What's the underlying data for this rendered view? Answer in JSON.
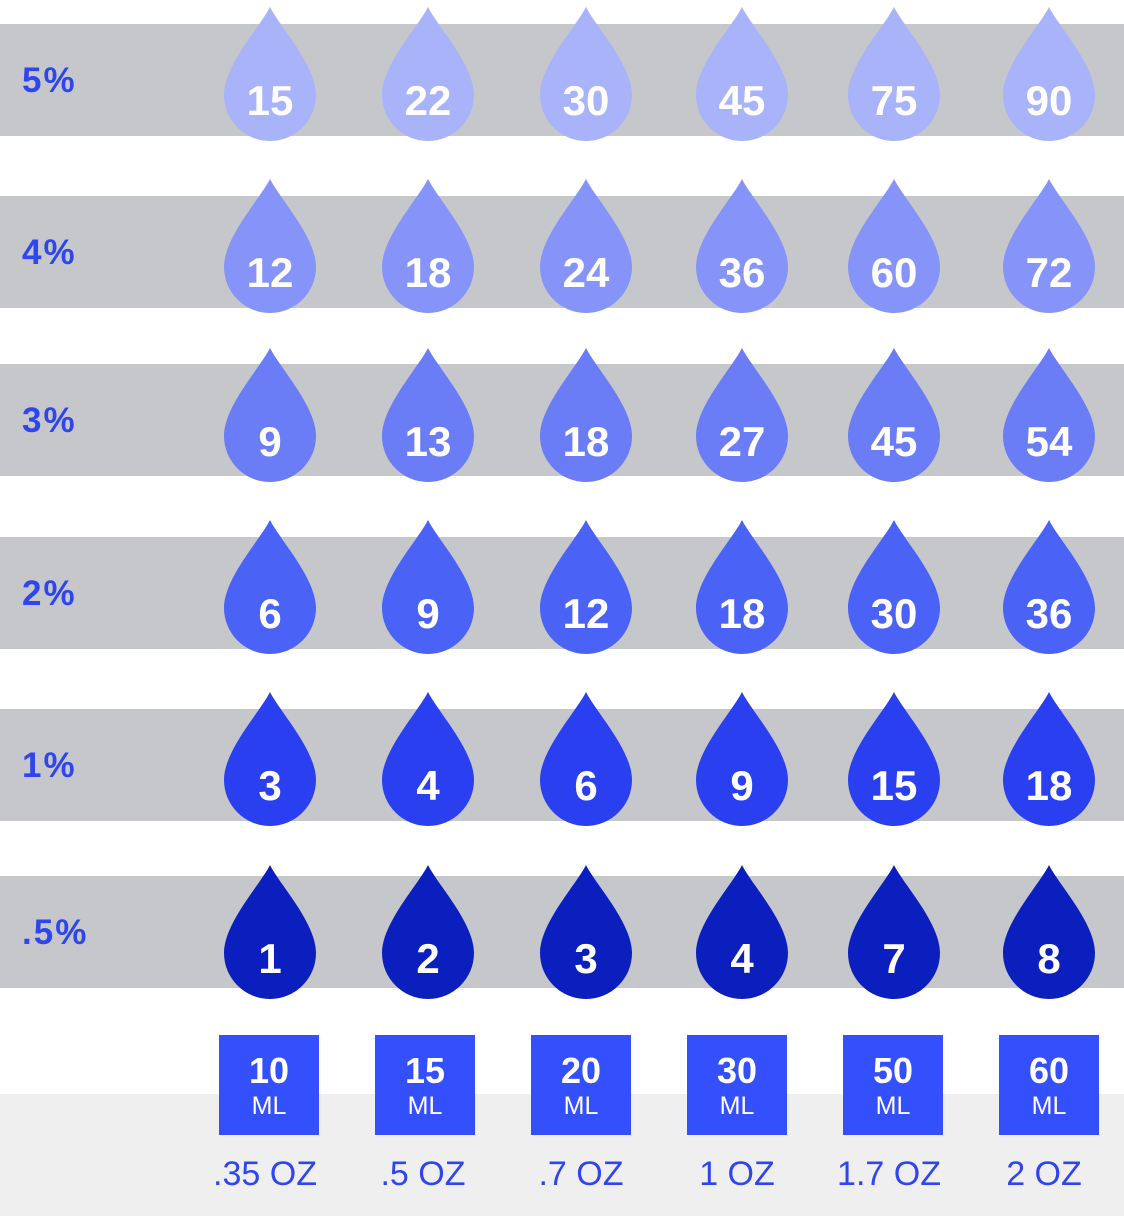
{
  "chart_data": {
    "type": "table",
    "row_labels": [
      "5%",
      "4%",
      "3%",
      "2%",
      "1%",
      ".5%"
    ],
    "columns": [
      {
        "ml": "10",
        "ml_unit": "ML",
        "oz": ".35 OZ"
      },
      {
        "ml": "15",
        "ml_unit": "ML",
        "oz": ".5 OZ"
      },
      {
        "ml": "20",
        "ml_unit": "ML",
        "oz": ".7 OZ"
      },
      {
        "ml": "30",
        "ml_unit": "ML",
        "oz": "1 OZ"
      },
      {
        "ml": "50",
        "ml_unit": "ML",
        "oz": "1.7 OZ"
      },
      {
        "ml": "60",
        "ml_unit": "ML",
        "oz": "2 OZ"
      }
    ],
    "values": [
      [
        15,
        22,
        30,
        45,
        75,
        90
      ],
      [
        12,
        18,
        24,
        36,
        60,
        72
      ],
      [
        9,
        13,
        18,
        27,
        45,
        54
      ],
      [
        6,
        9,
        12,
        18,
        30,
        36
      ],
      [
        3,
        4,
        6,
        9,
        15,
        18
      ],
      [
        1,
        2,
        3,
        4,
        7,
        8
      ]
    ],
    "row_colors": [
      "#a8b3f9",
      "#8693f8",
      "#6b7cf7",
      "#4a62f6",
      "#2a3ff0",
      "#0a1fbe"
    ]
  },
  "colors": {
    "band": "#c6c7cb",
    "footer_band": "#efeff0",
    "label": "#2f45f0",
    "size_box": "#3450fc"
  },
  "icon": "drop-icon"
}
